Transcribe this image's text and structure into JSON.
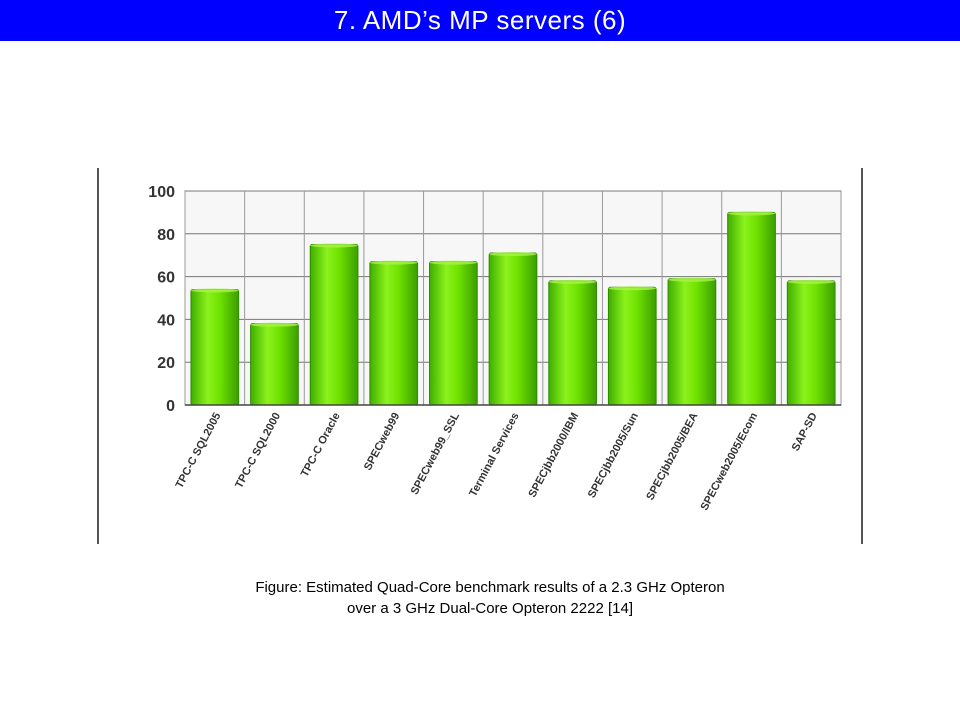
{
  "header": {
    "title": "7. AMD’s MP servers (6)"
  },
  "caption": {
    "line1": "Figure: Estimated Quad-Core benchmark results of a 2.3 GHz Opteron",
    "line2": "over a 3 GHz Dual-Core Opteron 2222 [14]"
  },
  "colors": {
    "title_bar": "#0000ff",
    "bar": "#66dd00",
    "bar_edge": "#2f8a00"
  },
  "chart_data": {
    "type": "bar",
    "categories": [
      "TPC-C SQL2005",
      "TPC-C SQL2000",
      "TPC-C Oracle",
      "SPECweb99",
      "SPECweb99_SSL",
      "Terminal Services",
      "SPECjbb2000/IBM",
      "SPECjbb2005/Sun",
      "SPECjbb2005/BEA",
      "SPECweb2005/Ecom",
      "SAP-SD"
    ],
    "values": [
      54,
      38,
      75,
      67,
      67,
      71,
      58,
      55,
      59,
      90,
      58
    ],
    "ylim": [
      0,
      100
    ],
    "yticks": [
      0,
      20,
      40,
      60,
      80,
      100
    ],
    "grid": true,
    "title": "",
    "xlabel": "",
    "ylabel": ""
  }
}
